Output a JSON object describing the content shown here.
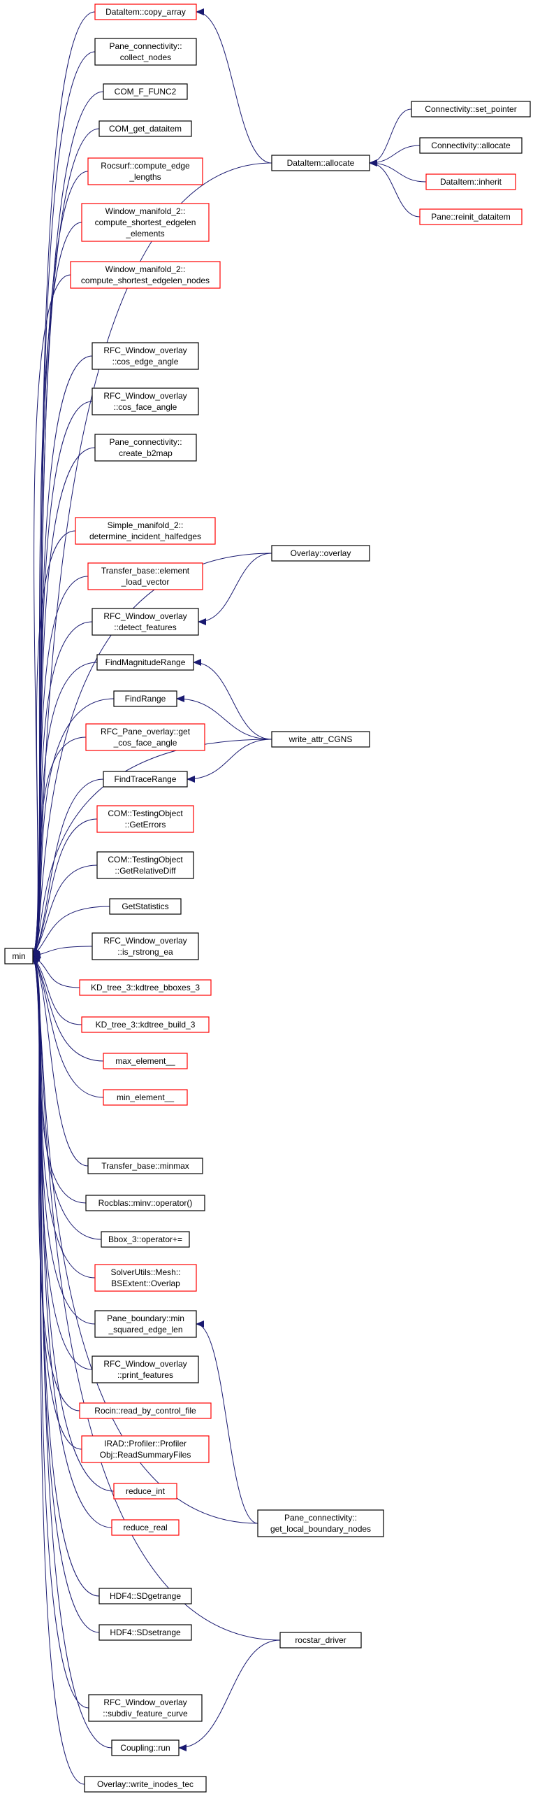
{
  "colors": {
    "edge": "#191970",
    "node_border_default": "#000000",
    "node_border_truncated": "#ff0000",
    "root_fill": "#bfbfbf",
    "node_fill": "#ffffff"
  },
  "graph": {
    "direction": "right-to-left caller graph: arrows point from callers toward the functions they call",
    "nodes": [
      {
        "id": "min",
        "lines": [
          "min"
        ],
        "border": "black",
        "root": true
      },
      {
        "id": "copy_array",
        "lines": [
          "DataItem::copy_array"
        ],
        "border": "red"
      },
      {
        "id": "collect_nodes",
        "lines": [
          "Pane_connectivity::",
          "collect_nodes"
        ],
        "border": "black"
      },
      {
        "id": "com_f_func2",
        "lines": [
          "COM_F_FUNC2"
        ],
        "border": "black"
      },
      {
        "id": "com_get_dataitem",
        "lines": [
          "COM_get_dataitem"
        ],
        "border": "black"
      },
      {
        "id": "compute_edge_lengths",
        "lines": [
          "Rocsurf::compute_edge",
          "_lengths"
        ],
        "border": "red"
      },
      {
        "id": "shortest_edgelen_elements",
        "lines": [
          "Window_manifold_2::",
          "compute_shortest_edgelen",
          "_elements"
        ],
        "border": "red"
      },
      {
        "id": "shortest_edgelen_nodes",
        "lines": [
          "Window_manifold_2::",
          "compute_shortest_edgelen_nodes"
        ],
        "border": "red"
      },
      {
        "id": "cos_edge_angle",
        "lines": [
          "RFC_Window_overlay",
          "::cos_edge_angle"
        ],
        "border": "black"
      },
      {
        "id": "cos_face_angle",
        "lines": [
          "RFC_Window_overlay",
          "::cos_face_angle"
        ],
        "border": "black"
      },
      {
        "id": "create_b2map",
        "lines": [
          "Pane_connectivity::",
          "create_b2map"
        ],
        "border": "black"
      },
      {
        "id": "determine_incident_halfedges",
        "lines": [
          "Simple_manifold_2::",
          "determine_incident_halfedges"
        ],
        "border": "red"
      },
      {
        "id": "element_load_vector",
        "lines": [
          "Transfer_base::element",
          "_load_vector"
        ],
        "border": "red"
      },
      {
        "id": "detect_features",
        "lines": [
          "RFC_Window_overlay",
          "::detect_features"
        ],
        "border": "black"
      },
      {
        "id": "find_magnitude_range",
        "lines": [
          "FindMagnitudeRange"
        ],
        "border": "black"
      },
      {
        "id": "find_range",
        "lines": [
          "FindRange"
        ],
        "border": "black"
      },
      {
        "id": "get_cos_face_angle",
        "lines": [
          "RFC_Pane_overlay::get",
          "_cos_face_angle"
        ],
        "border": "red"
      },
      {
        "id": "find_trace_range",
        "lines": [
          "FindTraceRange"
        ],
        "border": "black"
      },
      {
        "id": "get_errors",
        "lines": [
          "COM::TestingObject",
          "::GetErrors"
        ],
        "border": "red"
      },
      {
        "id": "get_relative_diff",
        "lines": [
          "COM::TestingObject",
          "::GetRelativeDiff"
        ],
        "border": "black"
      },
      {
        "id": "get_statistics",
        "lines": [
          "GetStatistics"
        ],
        "border": "black"
      },
      {
        "id": "is_rstrong_ea",
        "lines": [
          "RFC_Window_overlay",
          "::is_rstrong_ea"
        ],
        "border": "black"
      },
      {
        "id": "kdtree_bboxes_3",
        "lines": [
          "KD_tree_3::kdtree_bboxes_3"
        ],
        "border": "red"
      },
      {
        "id": "kdtree_build_3",
        "lines": [
          "KD_tree_3::kdtree_build_3"
        ],
        "border": "red"
      },
      {
        "id": "max_element",
        "lines": [
          "max_element__"
        ],
        "border": "red"
      },
      {
        "id": "min_element",
        "lines": [
          "min_element__"
        ],
        "border": "red"
      },
      {
        "id": "minmax",
        "lines": [
          "Transfer_base::minmax"
        ],
        "border": "black"
      },
      {
        "id": "minv_operator",
        "lines": [
          "Rocblas::minv::operator()"
        ],
        "border": "black"
      },
      {
        "id": "bbox_operator",
        "lines": [
          "Bbox_3::operator+="
        ],
        "border": "black"
      },
      {
        "id": "bsextent_overlap",
        "lines": [
          "SolverUtils::Mesh::",
          "BSExtent::Overlap"
        ],
        "border": "red"
      },
      {
        "id": "min_squared_edge_len",
        "lines": [
          "Pane_boundary::min",
          "_squared_edge_len"
        ],
        "border": "black"
      },
      {
        "id": "print_features",
        "lines": [
          "RFC_Window_overlay",
          "::print_features"
        ],
        "border": "black"
      },
      {
        "id": "read_by_control_file",
        "lines": [
          "Rocin::read_by_control_file"
        ],
        "border": "red"
      },
      {
        "id": "read_summary_files",
        "lines": [
          "IRAD::Profiler::Profiler",
          "Obj::ReadSummaryFiles"
        ],
        "border": "red"
      },
      {
        "id": "reduce_int",
        "lines": [
          "reduce_int"
        ],
        "border": "red"
      },
      {
        "id": "reduce_real",
        "lines": [
          "reduce_real"
        ],
        "border": "red"
      },
      {
        "id": "sdgetrange",
        "lines": [
          "HDF4::SDgetrange"
        ],
        "border": "black"
      },
      {
        "id": "sdsetrange",
        "lines": [
          "HDF4::SDsetrange"
        ],
        "border": "black"
      },
      {
        "id": "subdiv_feature_curve",
        "lines": [
          "RFC_Window_overlay",
          "::subdiv_feature_curve"
        ],
        "border": "black"
      },
      {
        "id": "coupling_run",
        "lines": [
          "Coupling::run"
        ],
        "border": "black"
      },
      {
        "id": "write_inodes_tec",
        "lines": [
          "Overlay::write_inodes_tec"
        ],
        "border": "black"
      },
      {
        "id": "allocate",
        "lines": [
          "DataItem::allocate"
        ],
        "border": "black"
      },
      {
        "id": "set_pointer",
        "lines": [
          "Connectivity::set_pointer"
        ],
        "border": "black"
      },
      {
        "id": "conn_allocate",
        "lines": [
          "Connectivity::allocate"
        ],
        "border": "black"
      },
      {
        "id": "inherit",
        "lines": [
          "DataItem::inherit"
        ],
        "border": "red"
      },
      {
        "id": "reinit_dataitem",
        "lines": [
          "Pane::reinit_dataitem"
        ],
        "border": "red"
      },
      {
        "id": "overlay",
        "lines": [
          "Overlay::overlay"
        ],
        "border": "black"
      },
      {
        "id": "write_attr_cgns",
        "lines": [
          "write_attr_CGNS"
        ],
        "border": "black"
      },
      {
        "id": "get_local_boundary_nodes",
        "lines": [
          "Pane_connectivity::",
          "get_local_boundary_nodes"
        ],
        "border": "black"
      },
      {
        "id": "rocstar_driver",
        "lines": [
          "rocstar_driver"
        ],
        "border": "black"
      }
    ],
    "edges": [
      [
        "copy_array",
        "min"
      ],
      [
        "collect_nodes",
        "min"
      ],
      [
        "com_f_func2",
        "min"
      ],
      [
        "com_get_dataitem",
        "min"
      ],
      [
        "compute_edge_lengths",
        "min"
      ],
      [
        "shortest_edgelen_elements",
        "min"
      ],
      [
        "shortest_edgelen_nodes",
        "min"
      ],
      [
        "cos_edge_angle",
        "min"
      ],
      [
        "cos_face_angle",
        "min"
      ],
      [
        "create_b2map",
        "min"
      ],
      [
        "determine_incident_halfedges",
        "min"
      ],
      [
        "element_load_vector",
        "min"
      ],
      [
        "detect_features",
        "min"
      ],
      [
        "find_magnitude_range",
        "min"
      ],
      [
        "find_range",
        "min"
      ],
      [
        "get_cos_face_angle",
        "min"
      ],
      [
        "find_trace_range",
        "min"
      ],
      [
        "get_errors",
        "min"
      ],
      [
        "get_relative_diff",
        "min"
      ],
      [
        "get_statistics",
        "min"
      ],
      [
        "is_rstrong_ea",
        "min"
      ],
      [
        "kdtree_bboxes_3",
        "min"
      ],
      [
        "kdtree_build_3",
        "min"
      ],
      [
        "max_element",
        "min"
      ],
      [
        "min_element",
        "min"
      ],
      [
        "minmax",
        "min"
      ],
      [
        "minv_operator",
        "min"
      ],
      [
        "bbox_operator",
        "min"
      ],
      [
        "bsextent_overlap",
        "min"
      ],
      [
        "min_squared_edge_len",
        "min"
      ],
      [
        "print_features",
        "min"
      ],
      [
        "read_by_control_file",
        "min"
      ],
      [
        "read_summary_files",
        "min"
      ],
      [
        "reduce_int",
        "min"
      ],
      [
        "reduce_real",
        "min"
      ],
      [
        "sdgetrange",
        "min"
      ],
      [
        "sdsetrange",
        "min"
      ],
      [
        "subdiv_feature_curve",
        "min"
      ],
      [
        "coupling_run",
        "min"
      ],
      [
        "write_inodes_tec",
        "min"
      ],
      [
        "allocate",
        "copy_array"
      ],
      [
        "set_pointer",
        "allocate"
      ],
      [
        "conn_allocate",
        "allocate"
      ],
      [
        "inherit",
        "allocate"
      ],
      [
        "reinit_dataitem",
        "allocate"
      ],
      [
        "overlay",
        "detect_features"
      ],
      [
        "write_attr_cgns",
        "find_magnitude_range"
      ],
      [
        "write_attr_cgns",
        "find_range"
      ],
      [
        "write_attr_cgns",
        "find_trace_range"
      ],
      [
        "get_local_boundary_nodes",
        "min_squared_edge_len"
      ],
      [
        "rocstar_driver",
        "coupling_run"
      ],
      [
        "allocate",
        "min"
      ],
      [
        "overlay",
        "min"
      ],
      [
        "write_attr_cgns",
        "min"
      ],
      [
        "get_local_boundary_nodes",
        "min"
      ],
      [
        "rocstar_driver",
        "min"
      ]
    ]
  }
}
